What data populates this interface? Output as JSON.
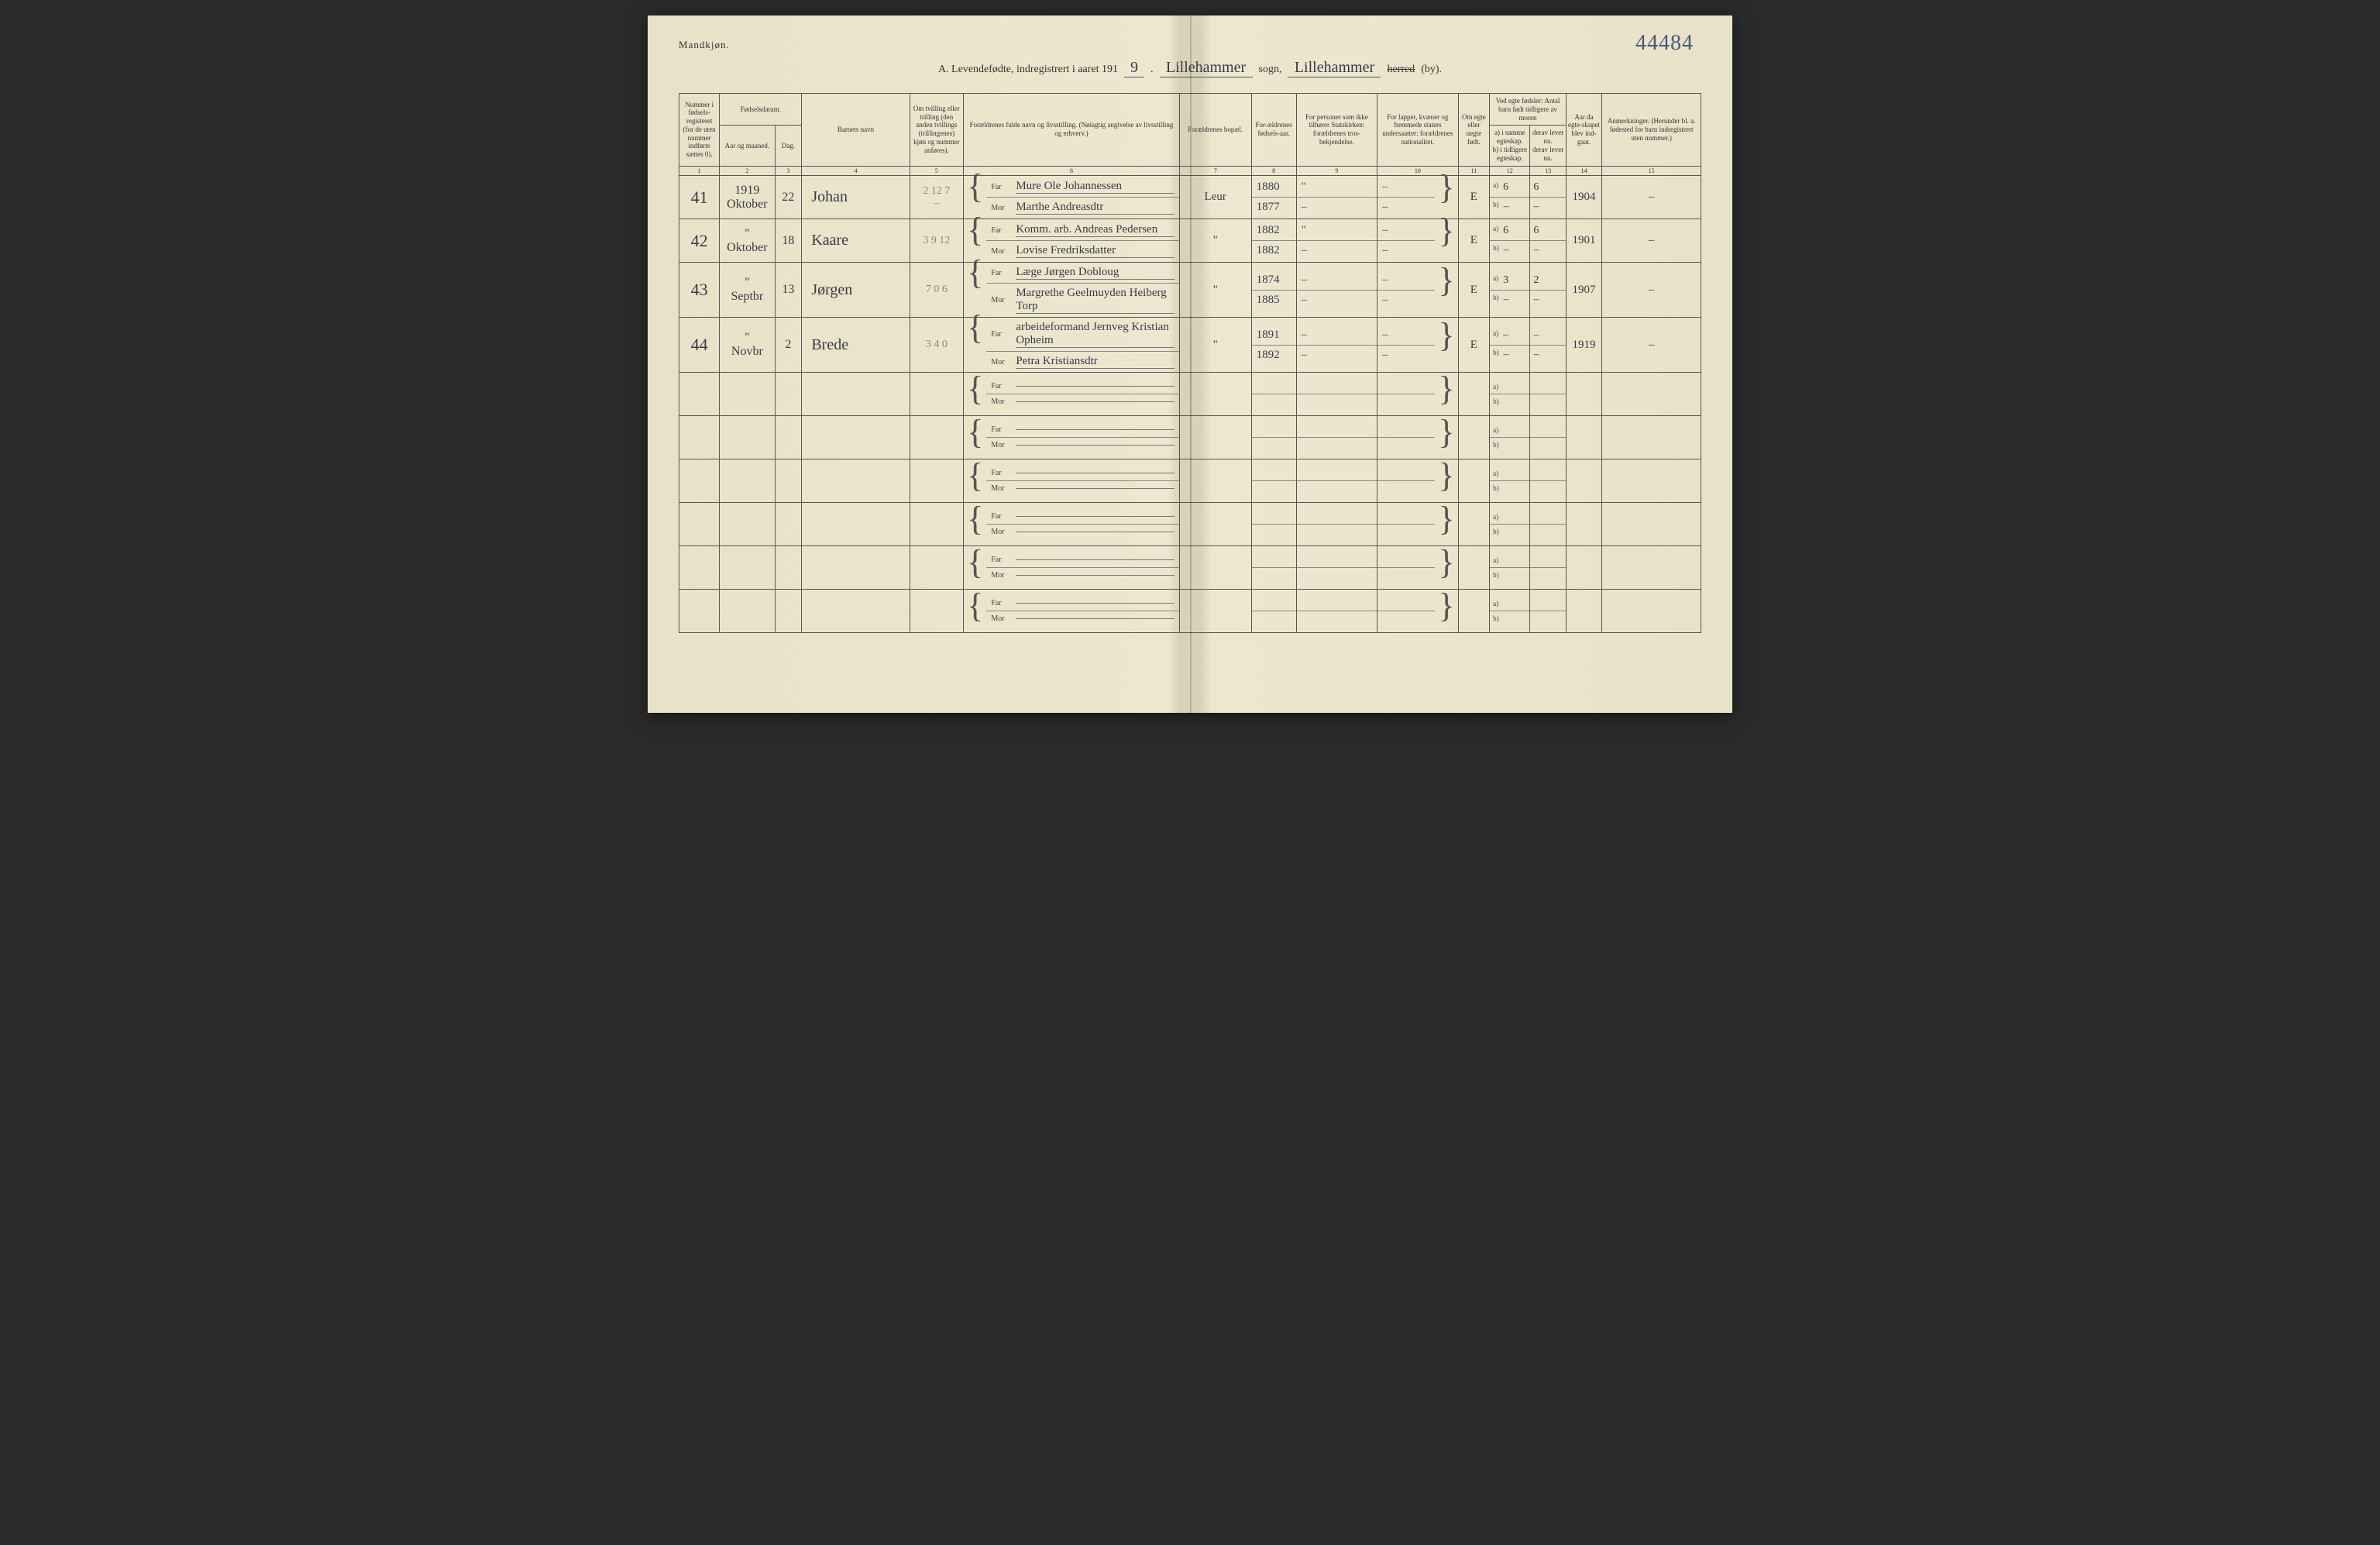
{
  "header": {
    "gender_label": "Mandkjøn.",
    "page_number": "44484",
    "title_prefix": "A. Levendefødte, indregistrert i aaret 191",
    "year_suffix": "9",
    "sogn_value": "Lillehammer",
    "sogn_label": "sogn,",
    "herred_value": "Lillehammer",
    "herred_struck": "herred",
    "by_label": "(by)."
  },
  "columns": {
    "c1": "Nummer i fødsels-registeret (for de uten nummer indførte sættes 0).",
    "c2_group": "Fødselsdatum.",
    "c2a": "Aar og maaned.",
    "c2b": "Dag.",
    "c4": "Barnets navn",
    "c5": "Om tvilling eller trilling (den anden tvillings (trillingenes) kjøn og nummer anføres).",
    "c6": "Forældrenes fulde navn og livsstilling. (Nøiagtig angivelse av livsstilling og erhverv.)",
    "c7": "Forældrenes bopæl.",
    "c8": "For-ældrenes fødsels-aar.",
    "c9": "For personer som ikke tilhører Statskirken: forældrenes tros-bekjendelse.",
    "c10": "For lapper, kvæner og fremmede staters undersaatter: forældrenes nationalitet.",
    "c11": "Om egte eller uegte født.",
    "c12_group": "Ved egte fødsler: Antal barn født tidligere av moren",
    "c12a": "a) i samme egteskap.",
    "c12b": "b) i tidligere egteskap.",
    "c13a": "derav lever nu.",
    "c13b": "derav lever nu.",
    "c14": "Aar da egte-skapet blev ind-gaat.",
    "c15": "Anmerkninger. (Herunder bl. a. fødested for barn indregistrert uten nummer.)"
  },
  "colnums": [
    "1",
    "2",
    "3",
    "4",
    "5",
    "6",
    "7",
    "8",
    "9",
    "10",
    "11",
    "12",
    "13",
    "14",
    "15"
  ],
  "far_label": "Far",
  "mor_label": "Mor",
  "rows": [
    {
      "num": "41",
      "year_month": "1919\nOktober",
      "day": "22",
      "name": "Johan",
      "twin": "2 12 7\n–",
      "far": "Mure Ole Johannessen",
      "mor": "Marthe Andreasdtr",
      "bopael": "Leur",
      "far_year": "1880",
      "mor_year": "1877",
      "c9f": "\"",
      "c9m": "–",
      "c10f": "–",
      "c10m": "–",
      "egte": "E",
      "a_same": "6",
      "a_lever": "6",
      "b_prev": "–",
      "b_lever": "–",
      "marriage": "1904",
      "remark": "–"
    },
    {
      "num": "42",
      "year_month": "\"\nOktober",
      "day": "18",
      "name": "Kaare",
      "twin": "3 9 12",
      "far": "Komm. arb. Andreas Pedersen",
      "mor": "Lovise Fredriksdatter",
      "bopael": "\"",
      "far_year": "1882",
      "mor_year": "1882",
      "c9f": "\"",
      "c9m": "–",
      "c10f": "–",
      "c10m": "–",
      "egte": "E",
      "a_same": "6",
      "a_lever": "6",
      "b_prev": "–",
      "b_lever": "–",
      "marriage": "1901",
      "remark": "–"
    },
    {
      "num": "43",
      "year_month": "\"\nSeptbr",
      "day": "13",
      "name": "Jørgen",
      "twin": "7 0 6",
      "far": "Læge Jørgen Dobloug",
      "mor": "Margrethe Geelmuyden Heiberg Torp",
      "bopael": "\"",
      "far_year": "1874",
      "mor_year": "1885",
      "c9f": "–",
      "c9m": "–",
      "c10f": "–",
      "c10m": "–",
      "egte": "E",
      "a_same": "3",
      "a_lever": "2",
      "b_prev": "–",
      "b_lever": "–",
      "marriage": "1907",
      "remark": "–"
    },
    {
      "num": "44",
      "year_month": "\"\nNovbr",
      "day": "2",
      "name": "Brede",
      "twin": "3 4 0",
      "far": "arbeideformand Jernveg Kristian Opheim",
      "mor": "Petra Kristiansdtr",
      "bopael": "\"",
      "far_year": "1891",
      "mor_year": "1892",
      "c9f": "–",
      "c9m": "–",
      "c10f": "–",
      "c10m": "–",
      "egte": "E",
      "a_same": "–",
      "a_lever": "–",
      "b_prev": "–",
      "b_lever": "–",
      "marriage": "1919",
      "remark": "–"
    },
    {
      "empty": true
    },
    {
      "empty": true
    },
    {
      "empty": true
    },
    {
      "empty": true
    },
    {
      "empty": true
    },
    {
      "empty": true
    }
  ]
}
